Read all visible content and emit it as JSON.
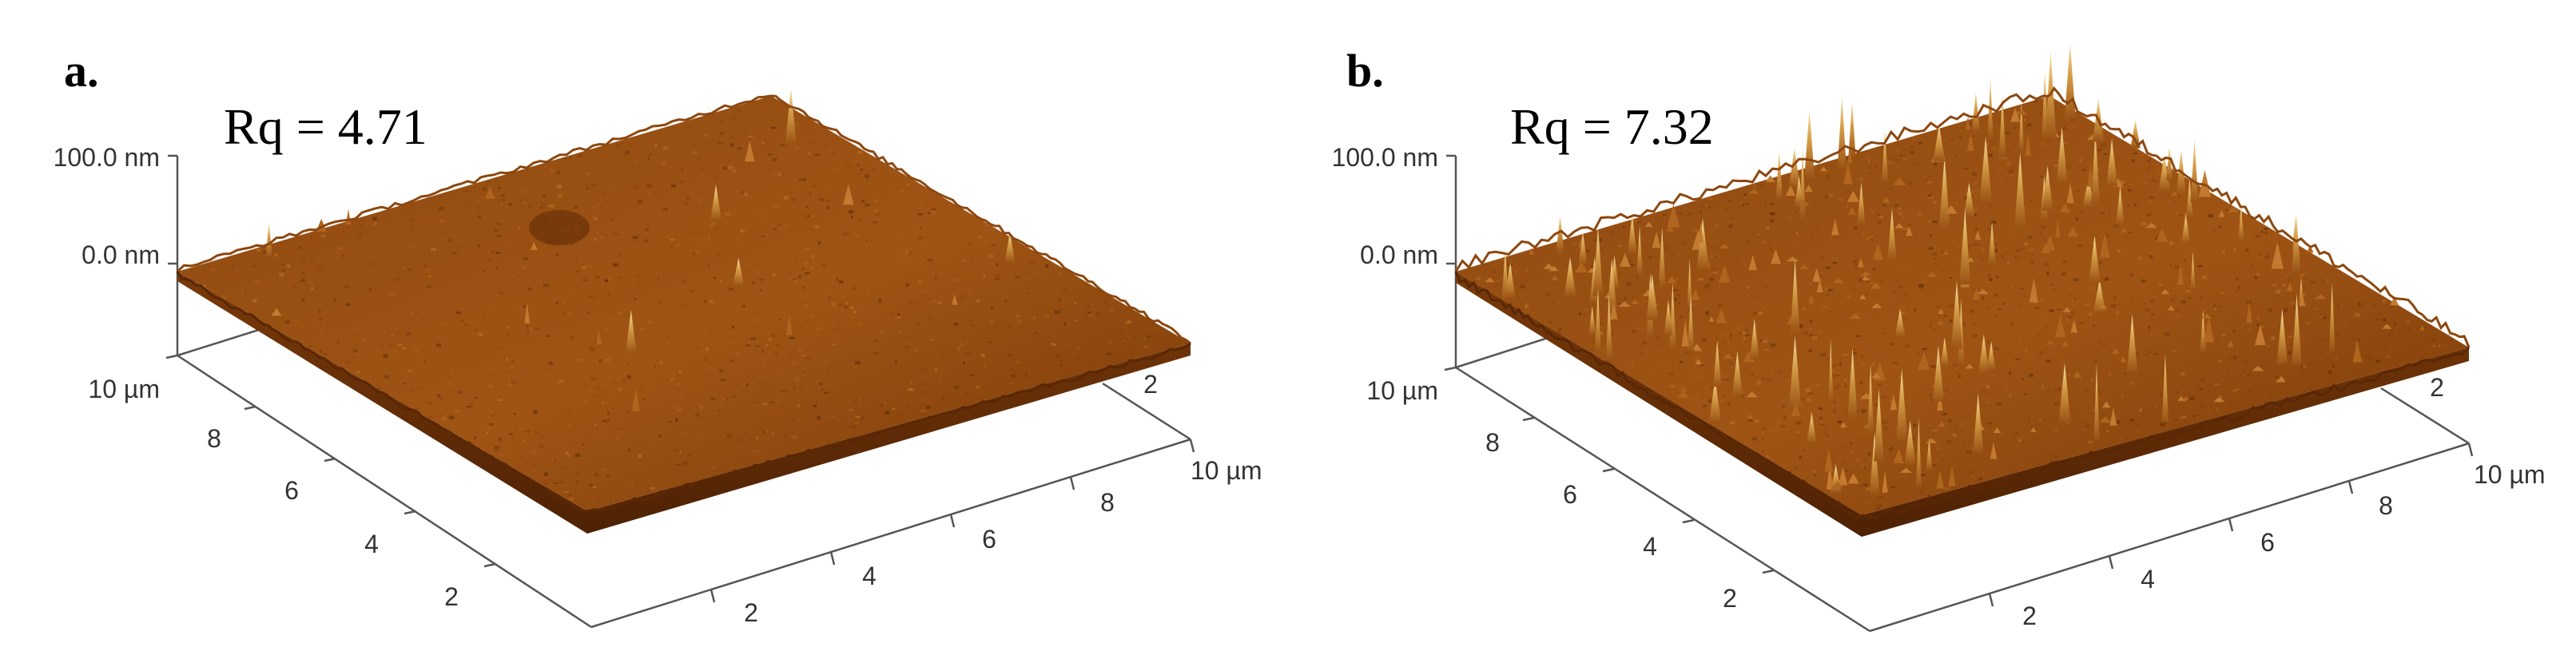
{
  "colors": {
    "surface_dark": "#6a2f06",
    "surface_mid": "#9c5011",
    "surface_light": "#c2752a",
    "peak": "#f2d48a",
    "axis": "#555555",
    "text": "#000000"
  },
  "panels": [
    {
      "label": "a.",
      "rq_text": "Rq = 4.71",
      "z_top": "100.0 nm",
      "z_zero": "0.0 nm",
      "left_axis_end": "10 µm",
      "left_ticks": [
        "8",
        "6",
        "4",
        "2"
      ],
      "right_axis_end": "10 µm",
      "right_ticks": [
        "2",
        "4",
        "6",
        "8"
      ],
      "back_tick": "2",
      "roughness_level": "low"
    },
    {
      "label": "b.",
      "rq_text": "Rq = 7.32",
      "z_top": "100.0 nm",
      "z_zero": "0.0 nm",
      "left_axis_end": "10 µm",
      "left_ticks": [
        "8",
        "6",
        "4",
        "2"
      ],
      "right_axis_end": "10 µm",
      "right_ticks": [
        "2",
        "4",
        "6",
        "8"
      ],
      "back_tick": "2",
      "roughness_level": "high"
    }
  ]
}
